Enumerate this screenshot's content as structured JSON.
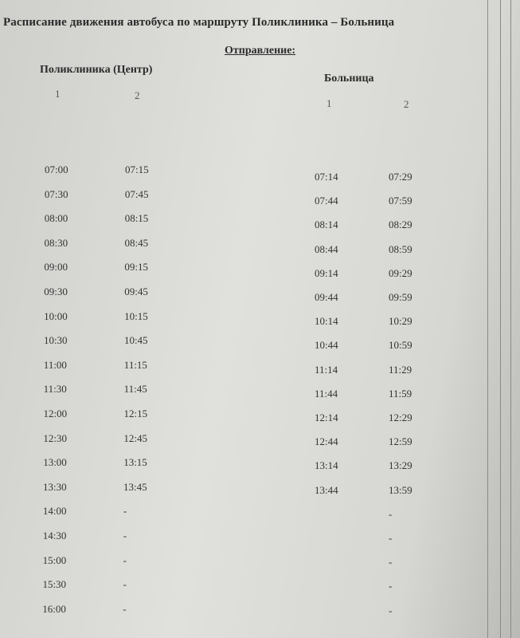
{
  "title": "Расписание движения автобуса по маршруту  Поликлиника – Больница",
  "subtitle": "Отправление:",
  "left": {
    "header": "Поликлиника (Центр)",
    "columns": [
      "1",
      "2"
    ]
  },
  "right": {
    "header": "Больница",
    "columns": [
      "1",
      "2"
    ]
  },
  "rows": [
    [
      "07:00",
      "07:15",
      "07:14",
      "07:29"
    ],
    [
      "07:30",
      "07:45",
      "07:44",
      "07:59"
    ],
    [
      "08:00",
      "08:15",
      "08:14",
      "08:29"
    ],
    [
      "08:30",
      "08:45",
      "08:44",
      "08:59"
    ],
    [
      "09:00",
      "09:15",
      "09:14",
      "09:29"
    ],
    [
      "09:30",
      "09:45",
      "09:44",
      "09:59"
    ],
    [
      "10:00",
      "10:15",
      "10:14",
      "10:29"
    ],
    [
      "10:30",
      "10:45",
      "10:44",
      "10:59"
    ],
    [
      "11:00",
      "11:15",
      "11:14",
      "11:29"
    ],
    [
      "11:30",
      "11:45",
      "11:44",
      "11:59"
    ],
    [
      "12:00",
      "12:15",
      "12:14",
      "12:29"
    ],
    [
      "12:30",
      "12:45",
      "12:44",
      "12:59"
    ],
    [
      "13:00",
      "13:15",
      "13:14",
      "13:29"
    ],
    [
      "13:30",
      "13:45",
      "13:44",
      "13:59"
    ],
    [
      "14:00",
      "-",
      null,
      "-"
    ],
    [
      "14:30",
      "-",
      null,
      "-"
    ],
    [
      "15:00",
      "-",
      null,
      "-"
    ],
    [
      "15:30",
      "-",
      null,
      "-"
    ],
    [
      "16:00",
      "-",
      null,
      "-"
    ]
  ]
}
